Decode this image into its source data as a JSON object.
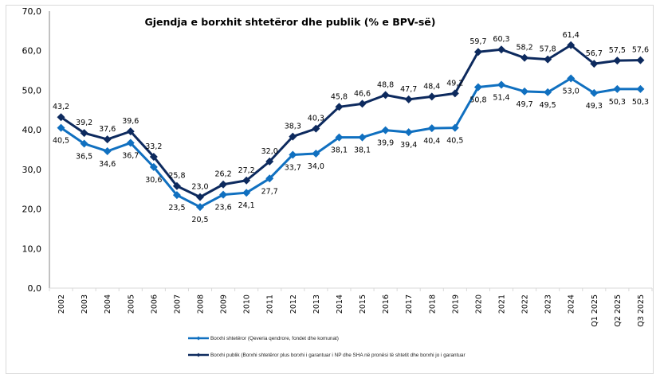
{
  "chart_data": {
    "type": "line",
    "title": "Gjendja e borxhit shtetëror dhe publik (% e BPV-së)",
    "xlabel": "",
    "ylabel": "",
    "ylim": [
      0,
      70
    ],
    "yticks": [
      "0,0",
      "10,0",
      "20,0",
      "30,0",
      "40,0",
      "50,0",
      "60,0",
      "70,0"
    ],
    "ytick_values": [
      0,
      10,
      20,
      30,
      40,
      50,
      60,
      70
    ],
    "grid": false,
    "legend_position": "bottom",
    "categories": [
      "2002",
      "2003",
      "2004",
      "2005",
      "2006",
      "2007",
      "2008",
      "2009",
      "2010",
      "2011",
      "2012",
      "2013",
      "2014",
      "2015",
      "2016",
      "2017",
      "2018",
      "2019",
      "2020",
      "2021",
      "2022",
      "2023",
      "2024",
      "Q1 2025",
      "Q2 2025",
      "Q3 2025"
    ],
    "series": [
      {
        "name": "Borxhi shtetëror (Qeveria qendrore, fondet dhe komunat)",
        "color": "#1070C0",
        "marker": "diamond",
        "label_position": "below",
        "values": [
          40.5,
          36.5,
          34.6,
          36.7,
          30.6,
          23.5,
          20.5,
          23.6,
          24.1,
          27.7,
          33.7,
          34.0,
          38.1,
          38.1,
          39.9,
          39.4,
          40.4,
          40.5,
          50.8,
          51.4,
          49.7,
          49.5,
          53.0,
          49.3,
          50.3,
          50.3
        ],
        "labels": [
          "40,5",
          "36,5",
          "34,6",
          "36,7",
          "30,6",
          "23,5",
          "20,5",
          "23,6",
          "24,1",
          "27,7",
          "33,7",
          "34,0",
          "38,1",
          "38,1",
          "39,9",
          "39,4",
          "40,4",
          "40,5",
          "50,8",
          "51,4",
          "49,7",
          "49,5",
          "53,0",
          "49,3",
          "50,3",
          "50,3"
        ]
      },
      {
        "name": "Borxhi publik (Borxhi shtetëror plus borxhi i garantuar i NP dhe SHA në pronësi të shtetit dhe borxhi  jo i garantuar",
        "color": "#0D2A5E",
        "marker": "diamond",
        "label_position": "above",
        "values": [
          43.2,
          39.2,
          37.6,
          39.6,
          33.2,
          25.8,
          23.0,
          26.2,
          27.2,
          32.0,
          38.3,
          40.3,
          45.8,
          46.6,
          48.8,
          47.7,
          48.4,
          49.2,
          59.7,
          60.3,
          58.2,
          57.8,
          61.4,
          56.7,
          57.5,
          57.6
        ],
        "labels": [
          "43,2",
          "39,2",
          "37,6",
          "39,6",
          "33,2",
          "25,8",
          "23,0",
          "26,2",
          "27,2",
          "32,0",
          "38,3",
          "40,3",
          "45,8",
          "46,6",
          "48,8",
          "47,7",
          "48,4",
          "49,2",
          "59,7",
          "60,3",
          "58,2",
          "57,8",
          "61,4",
          "56,7",
          "57,5",
          "57,6"
        ]
      }
    ]
  },
  "colors": {
    "axis": "#868686",
    "frame": "#d9d9d9"
  }
}
